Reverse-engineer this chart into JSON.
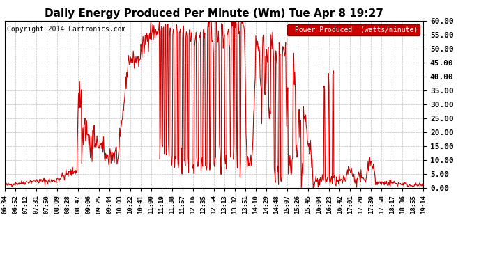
{
  "title": "Daily Energy Produced Per Minute (Wm) Tue Apr 8 19:27",
  "copyright": "Copyright 2014 Cartronics.com",
  "legend_label": "Power Produced  (watts/minute)",
  "legend_bg": "#cc0000",
  "line_color": "#cc0000",
  "bg_color": "#ffffff",
  "plot_bg_color": "#ffffff",
  "grid_color": "#bbbbbb",
  "ylim": [
    0.0,
    60.0
  ],
  "yticks": [
    0.0,
    5.0,
    10.0,
    15.0,
    20.0,
    25.0,
    30.0,
    35.0,
    40.0,
    45.0,
    50.0,
    55.0,
    60.0
  ],
  "xtick_labels": [
    "06:34",
    "06:52",
    "07:12",
    "07:31",
    "07:50",
    "08:09",
    "08:28",
    "08:47",
    "09:06",
    "09:25",
    "09:44",
    "10:03",
    "10:22",
    "10:41",
    "11:00",
    "11:19",
    "11:38",
    "11:57",
    "12:16",
    "12:35",
    "12:54",
    "13:13",
    "13:32",
    "13:51",
    "14:10",
    "14:29",
    "14:48",
    "15:07",
    "15:26",
    "15:45",
    "16:04",
    "16:23",
    "16:42",
    "17:01",
    "17:20",
    "17:39",
    "17:58",
    "18:17",
    "18:36",
    "18:55",
    "19:14"
  ],
  "title_fontsize": 11,
  "copyright_fontsize": 7,
  "tick_fontsize": 6.5,
  "legend_fontsize": 7,
  "ytick_fontsize": 8,
  "line_width": 0.8
}
